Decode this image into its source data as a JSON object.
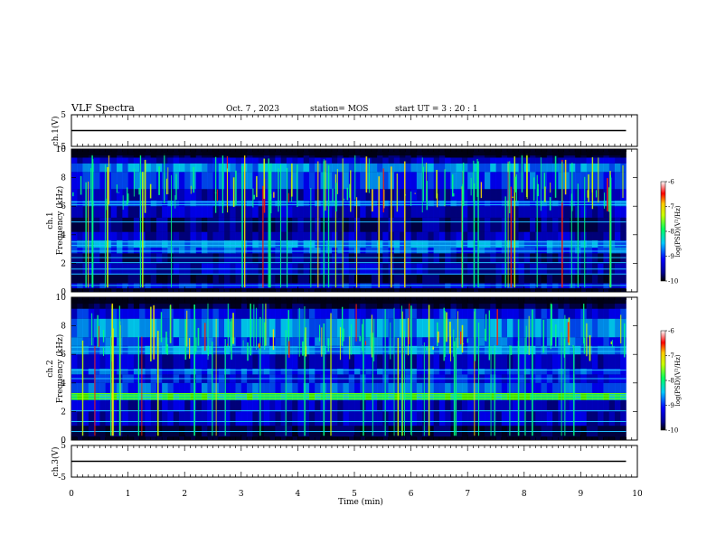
{
  "header": {
    "title": "VLF Spectra",
    "date": "Oct. 7 , 2023",
    "station": "station= MOS",
    "start": "start  UT =   3 : 20 : 1"
  },
  "chart_data": [
    {
      "type": "line",
      "ylabel": "ch.1(V)",
      "ylim": [
        -5,
        5
      ],
      "yticks": [
        "5",
        "-5"
      ],
      "xlim": [
        0,
        10
      ],
      "series": [
        {
          "x": [
            0,
            9.8
          ],
          "y": [
            0,
            0
          ]
        }
      ]
    },
    {
      "type": "heatmap",
      "ylabel_line1": "ch.1",
      "ylabel_line2": "Frequency (kHz)",
      "ylim": [
        0,
        10
      ],
      "yticks": [
        "0",
        "2",
        "4",
        "6",
        "8",
        "10"
      ],
      "xlim": [
        0,
        10
      ],
      "data_xmax": 9.8,
      "colorbar": {
        "label": "log(PSD)(V²/Hz)",
        "range": [
          -10,
          -6
        ],
        "ticks": [
          "-6",
          "-7",
          "-8",
          "-9",
          "-10"
        ]
      }
    },
    {
      "type": "heatmap",
      "ylabel_line1": "ch.2",
      "ylabel_line2": "Frequency (kHz)",
      "ylim": [
        0,
        10
      ],
      "yticks": [
        "0",
        "2",
        "4",
        "6",
        "8",
        "10"
      ],
      "xlim": [
        0,
        10
      ],
      "data_xmax": 9.8,
      "colorbar": {
        "label": "log(PSD)(V²/Hz)",
        "range": [
          -10,
          -6
        ],
        "ticks": [
          "-6",
          "-7",
          "-8",
          "-9",
          "-10"
        ]
      }
    },
    {
      "type": "line",
      "ylabel": "ch.3(V)",
      "ylim": [
        -5,
        5
      ],
      "yticks": [
        "5",
        "-5"
      ],
      "xlim": [
        0,
        10
      ],
      "xlabel": "Time (min)",
      "xticks": [
        "0",
        "1",
        "2",
        "3",
        "4",
        "5",
        "6",
        "7",
        "8",
        "9",
        "10"
      ],
      "series": [
        {
          "x": [
            0,
            9.8
          ],
          "y": [
            0,
            0
          ]
        }
      ]
    }
  ]
}
